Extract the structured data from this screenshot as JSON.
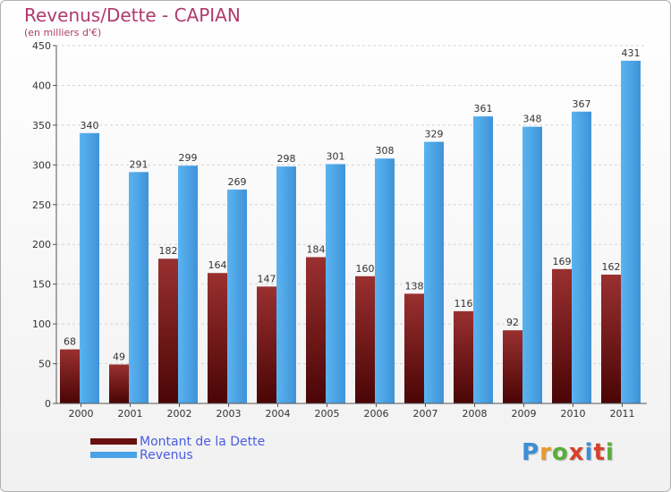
{
  "header": {
    "title": "Revenus/Dette - CAPIAN",
    "subtitle": "(en milliers d'€)"
  },
  "logo": {
    "text": "Proxiti",
    "colors": [
      "#3a8fd8",
      "#e89a2a",
      "#5aae3a",
      "#d8402a",
      "#3a8fd8",
      "#d8402a",
      "#5aae3a"
    ]
  },
  "chart_data": {
    "type": "bar",
    "title": "Revenus/Dette - CAPIAN",
    "ylabel": "(en milliers d'€)",
    "xlabel": "",
    "categories": [
      "2000",
      "2001",
      "2002",
      "2003",
      "2004",
      "2005",
      "2006",
      "2007",
      "2008",
      "2009",
      "2010",
      "2011"
    ],
    "series": [
      {
        "name": "Montant de la Dette",
        "values": [
          68,
          49,
          182,
          164,
          147,
          184,
          160,
          138,
          116,
          92,
          169,
          162
        ],
        "color": "#7a1e1e"
      },
      {
        "name": "Revenus",
        "values": [
          340,
          291,
          299,
          269,
          298,
          301,
          308,
          329,
          361,
          348,
          367,
          431
        ],
        "color": "#4aa3e8"
      }
    ],
    "ylim": [
      0,
      450
    ],
    "yticks": [
      0,
      50,
      100,
      150,
      200,
      250,
      300,
      350,
      400,
      450
    ],
    "grid": true,
    "legend_placement": "bottom-left"
  },
  "legend": {
    "items": [
      {
        "label": "Montant de la Dette",
        "color": "#6a0f0f"
      },
      {
        "label": "Revenus",
        "color": "#4aa3e8"
      }
    ]
  }
}
